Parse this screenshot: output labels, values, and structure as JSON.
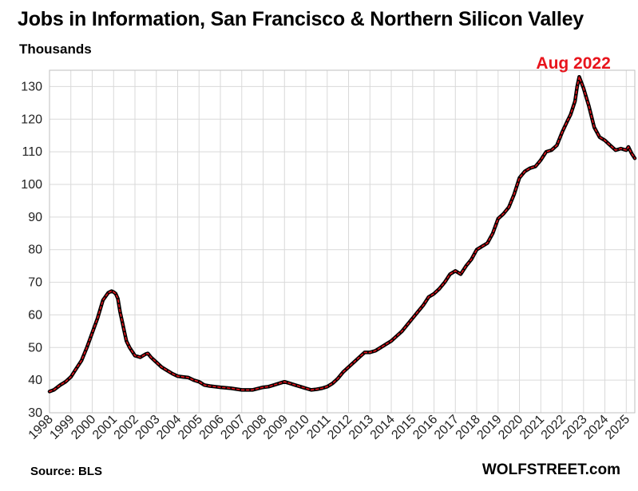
{
  "title": "Jobs in Information, San Francisco & Northern Silicon Valley",
  "subtitle": "Thousands",
  "source": "Source: BLS",
  "brand": "WOLFSTREET.com",
  "colors": {
    "line": "#000000",
    "line_overlay": "#e8141c",
    "annotation": "#e8141c",
    "grid": "#d9d9d9"
  },
  "chart_data": {
    "type": "line",
    "title": "Jobs in Information, San Francisco & Northern Silicon Valley",
    "ylabel": "Thousands",
    "xlabel": "",
    "ylim": [
      30,
      135
    ],
    "xlim": [
      1998.0,
      2025.4
    ],
    "yticks": [
      30,
      40,
      50,
      60,
      70,
      80,
      90,
      100,
      110,
      120,
      130
    ],
    "xticks": [
      "1998",
      "1999",
      "2000",
      "2001",
      "2002",
      "2003",
      "2004",
      "2005",
      "2006",
      "2007",
      "2008",
      "2009",
      "2010",
      "2011",
      "2012",
      "2013",
      "2014",
      "2015",
      "2016",
      "2017",
      "2018",
      "2019",
      "2020",
      "2021",
      "2022",
      "2023",
      "2024",
      "2025"
    ],
    "grid": true,
    "legend": "none",
    "annotations": [
      {
        "text": "Aug 2022",
        "x": 2022.6,
        "y": 133
      }
    ],
    "series": [
      {
        "x": [
          1998.0,
          1998.2,
          1998.5,
          1998.75,
          1999.0,
          1999.25,
          1999.5,
          1999.75,
          2000.0,
          2000.25,
          2000.5,
          2000.75,
          2000.9,
          2001.0,
          2001.1,
          2001.2,
          2001.3,
          2001.4,
          2001.5,
          2001.6,
          2001.75,
          2002.0,
          2002.25,
          2002.5,
          2002.6,
          2002.75,
          2003.0,
          2003.25,
          2003.5,
          2003.75,
          2004.0,
          2004.25,
          2004.5,
          2004.75,
          2005.0,
          2005.25,
          2005.5,
          2005.75,
          2006.0,
          2006.5,
          2007.0,
          2007.5,
          2008.0,
          2008.25,
          2008.5,
          2008.75,
          2009.0,
          2009.25,
          2009.5,
          2009.75,
          2010.0,
          2010.25,
          2010.5,
          2010.75,
          2011.0,
          2011.25,
          2011.5,
          2011.75,
          2012.0,
          2012.25,
          2012.5,
          2012.75,
          2013.0,
          2013.25,
          2013.5,
          2013.75,
          2014.0,
          2014.25,
          2014.5,
          2014.75,
          2015.0,
          2015.25,
          2015.5,
          2015.75,
          2016.0,
          2016.25,
          2016.5,
          2016.75,
          2017.0,
          2017.25,
          2017.5,
          2017.75,
          2018.0,
          2018.25,
          2018.5,
          2018.75,
          2019.0,
          2019.25,
          2019.5,
          2019.75,
          2020.0,
          2020.25,
          2020.5,
          2020.75,
          2021.0,
          2021.25,
          2021.5,
          2021.75,
          2022.0,
          2022.25,
          2022.4,
          2022.5,
          2022.6,
          2022.7,
          2022.8,
          2023.0,
          2023.25,
          2023.5,
          2023.75,
          2024.0,
          2024.25,
          2024.5,
          2024.75,
          2025.0,
          2025.1,
          2025.25,
          2025.4
        ],
        "values": [
          36.5,
          37.0,
          38.5,
          39.5,
          41.0,
          43.5,
          46.0,
          50.0,
          54.5,
          59.0,
          64.5,
          66.8,
          67.3,
          67.0,
          66.5,
          65.0,
          61.0,
          58.0,
          55.0,
          52.0,
          50.0,
          47.5,
          47.0,
          48.0,
          48.2,
          47.0,
          45.5,
          44.0,
          43.0,
          42.0,
          41.2,
          41.0,
          40.8,
          40.0,
          39.5,
          38.5,
          38.2,
          38.0,
          37.8,
          37.5,
          37.0,
          37.0,
          37.8,
          38.0,
          38.5,
          39.0,
          39.5,
          39.0,
          38.5,
          38.0,
          37.5,
          37.0,
          37.2,
          37.5,
          38.0,
          39.0,
          40.5,
          42.5,
          44.0,
          45.5,
          47.0,
          48.5,
          48.5,
          49.0,
          50.0,
          51.0,
          52.0,
          53.5,
          55.0,
          57.0,
          59.0,
          61.0,
          63.0,
          65.5,
          66.5,
          68.0,
          70.0,
          72.5,
          73.5,
          72.5,
          75.0,
          77.0,
          80.0,
          81.0,
          82.0,
          85.0,
          89.5,
          91.0,
          93.0,
          97.0,
          102.0,
          104.0,
          105.0,
          105.5,
          107.5,
          110.0,
          110.5,
          112.0,
          116.0,
          119.5,
          121.5,
          123.5,
          125.5,
          130.0,
          133.0,
          129.5,
          124.0,
          117.5,
          114.5,
          113.5,
          112.0,
          110.5,
          111.0,
          110.5,
          111.5,
          109.5,
          108.0
        ]
      }
    ]
  }
}
